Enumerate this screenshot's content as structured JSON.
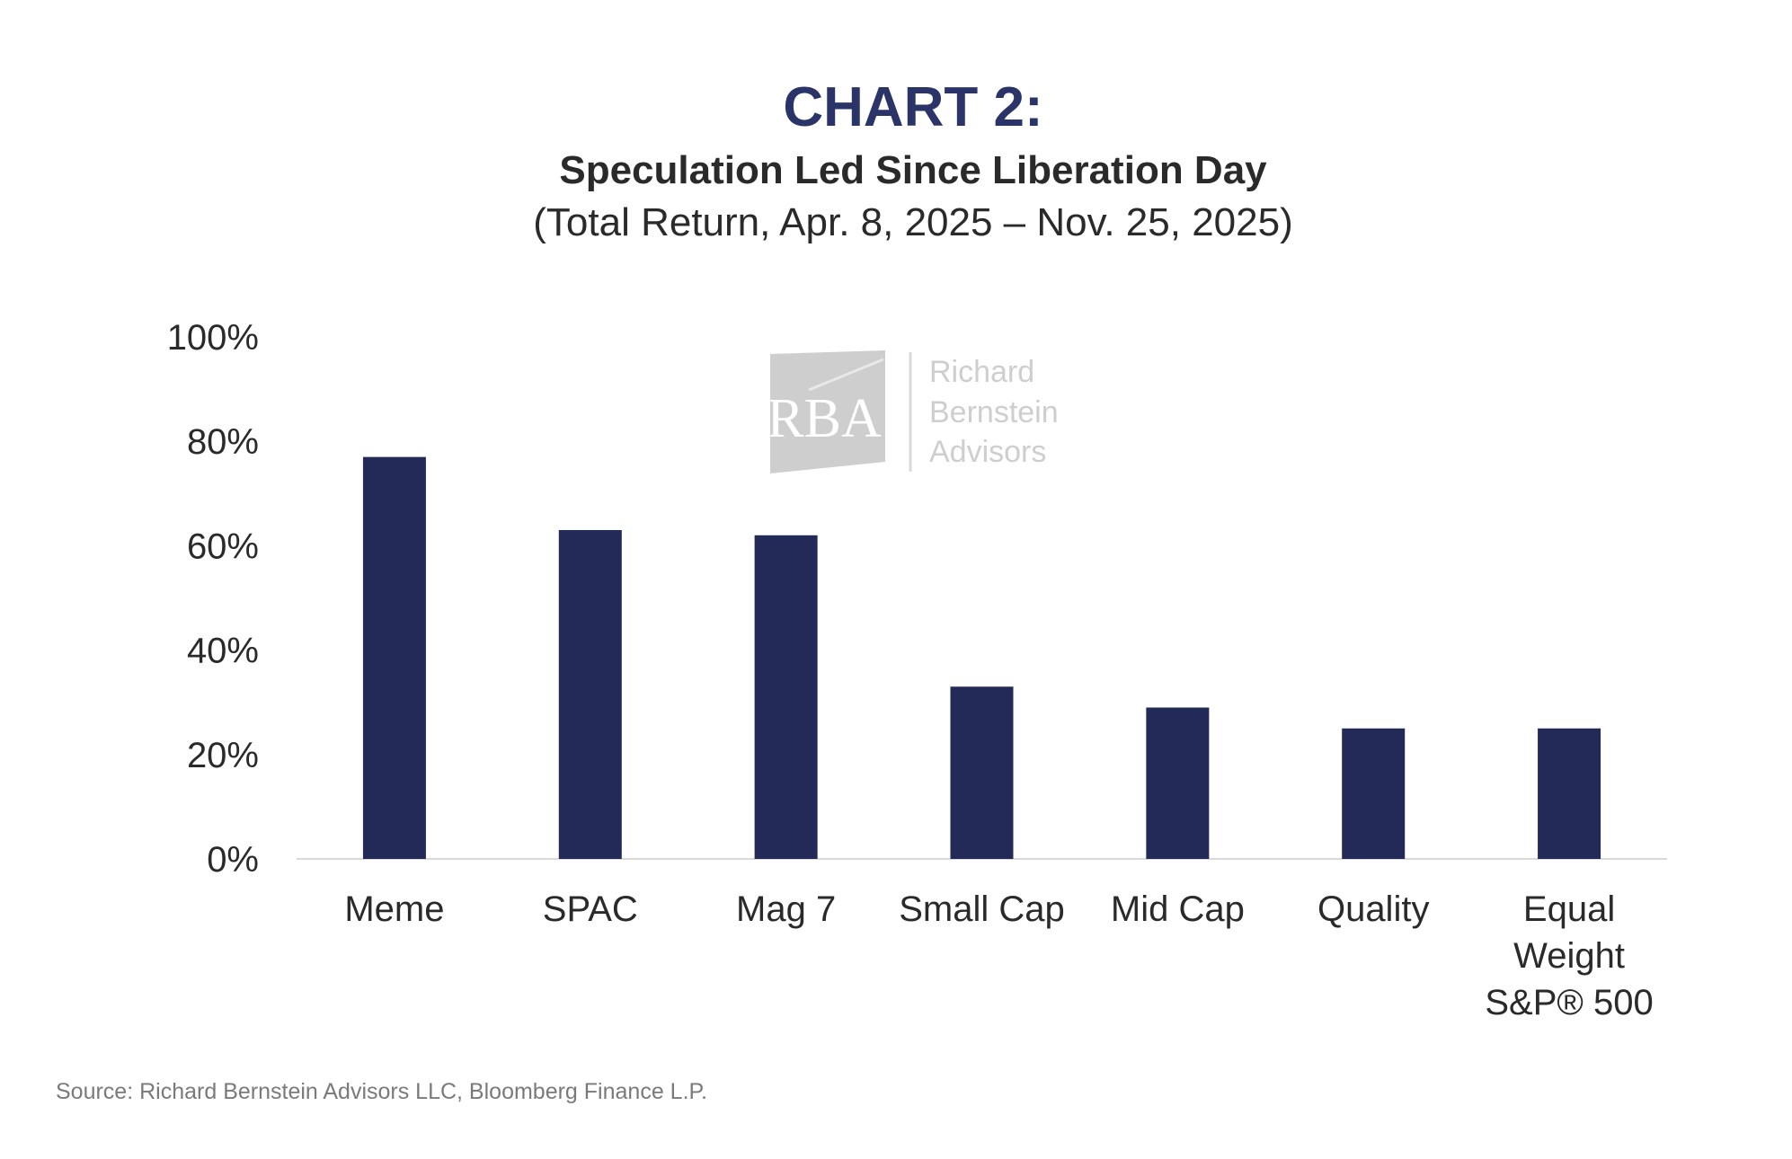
{
  "chart_data": {
    "type": "bar",
    "title": "CHART 2:",
    "subtitle": "Speculation Led Since Liberation Day",
    "subtitle_2": "(Total Return, Apr. 8, 2025 – Nov. 25, 2025)",
    "xlabel": "",
    "ylabel": "",
    "categories": [
      [
        "Meme"
      ],
      [
        "SPAC"
      ],
      [
        "Mag 7"
      ],
      [
        "Small Cap"
      ],
      [
        "Mid Cap"
      ],
      [
        "Quality"
      ],
      [
        "Equal",
        "Weight",
        "S&P® 500"
      ]
    ],
    "values": [
      77,
      63,
      62,
      33,
      29,
      25,
      25
    ],
    "ylim": [
      0,
      100
    ],
    "yticks": [
      0,
      20,
      40,
      60,
      80,
      100
    ],
    "ytick_labels": [
      "0%",
      "20%",
      "40%",
      "60%",
      "80%",
      "100%"
    ],
    "grid": false,
    "legend": "none",
    "colors": {
      "bar": "#232a57",
      "title": "#2b3468",
      "axis": "#d9d9d9"
    }
  },
  "watermark": {
    "monogram": "RBA",
    "lines": [
      "Richard",
      "Bernstein",
      "Advisors"
    ]
  },
  "source": "Source: Richard Bernstein Advisors LLC, Bloomberg Finance L.P."
}
